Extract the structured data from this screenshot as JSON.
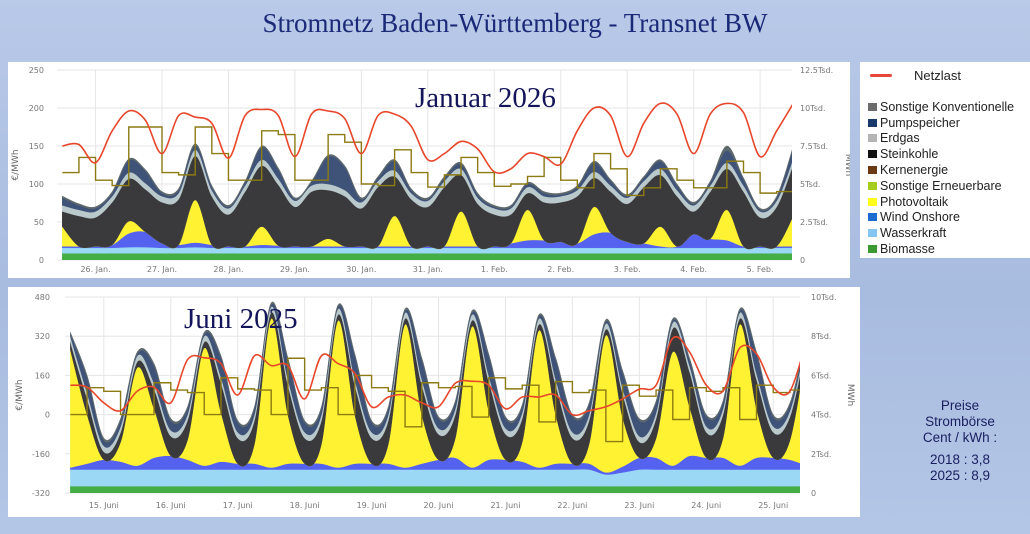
{
  "title": "Stromnetz Baden-Württemberg - Transnet BW",
  "legend": {
    "netzlast": {
      "label": "Netzlast",
      "color": "#e8463a"
    },
    "items": [
      {
        "label": "Sonstige Konventionelle",
        "color": "#6b6b6b"
      },
      {
        "label": "Pumpspeicher",
        "color": "#173a6b"
      },
      {
        "label": "Erdgas",
        "color": "#b4b4b4"
      },
      {
        "label": "Steinkohle",
        "color": "#111111"
      },
      {
        "label": "Kernenergie",
        "color": "#6b3a12"
      },
      {
        "label": "Sonstige Erneuerbare",
        "color": "#a6cc1e"
      },
      {
        "label": "Photovoltaik",
        "color": "#ffff1a"
      },
      {
        "label": "Wind Onshore",
        "color": "#1a6ad0"
      },
      {
        "label": "Wasserkraft",
        "color": "#84c6f2"
      },
      {
        "label": "Biomasse",
        "color": "#3b9a2f"
      }
    ]
  },
  "price_box": {
    "lines": [
      "Preise",
      "Strombörse",
      "Cent / kWh :"
    ],
    "values": [
      "2018 : 3,8",
      "2025 : 8,9"
    ]
  },
  "chart_data": [
    {
      "type": "area",
      "title": "Januar 2026",
      "ylabel_left": "€/MWh",
      "ylabel_right": "MWh",
      "left_ticks": [
        "0",
        "50",
        "100",
        "150",
        "200",
        "250"
      ],
      "left_range": [
        0,
        250
      ],
      "right_ticks": [
        "0",
        "2.5Tsd.",
        "5Tsd.",
        "7.5Tsd.",
        "10Tsd.",
        "12.5Tsd."
      ],
      "right_range_tsd_mwh": [
        0,
        12.5
      ],
      "x_ticks": [
        "26. Jan.",
        "27. Jan.",
        "28. Jan.",
        "29. Jan.",
        "30. Jan.",
        "31. Jan.",
        "1. Feb.",
        "2. Feb.",
        "3. Feb.",
        "4. Feb.",
        "5. Feb."
      ],
      "x_start": "25. Jan. 12:00",
      "step_hours": 6,
      "x_domain_days": [
        -0.08,
        10.98
      ],
      "first_tick_day": 0.5,
      "grid": true,
      "stack": [
        {
          "name": "Biomasse",
          "fill": "#45ad45",
          "values": [
            0.45,
            0.45,
            0.45,
            0.45,
            0.45,
            0.45,
            0.45,
            0.45,
            0.45,
            0.45,
            0.45,
            0.45,
            0.45,
            0.45,
            0.45,
            0.45,
            0.45,
            0.45,
            0.45,
            0.45,
            0.45,
            0.45,
            0.45,
            0.45,
            0.45,
            0.45,
            0.45,
            0.45,
            0.45,
            0.45,
            0.45,
            0.45,
            0.45,
            0.45,
            0.45,
            0.45,
            0.45,
            0.45,
            0.45,
            0.45,
            0.45,
            0.45,
            0.45,
            0.45,
            0.45
          ]
        },
        {
          "name": "Wasserkraft",
          "fill": "#9ad8f6",
          "values": [
            0.35,
            0.35,
            0.35,
            0.35,
            0.4,
            0.4,
            0.35,
            0.35,
            0.4,
            0.35,
            0.35,
            0.35,
            0.35,
            0.35,
            0.35,
            0.35,
            0.35,
            0.35,
            0.35,
            0.35,
            0.35,
            0.35,
            0.35,
            0.35,
            0.35,
            0.35,
            0.35,
            0.35,
            0.35,
            0.35,
            0.35,
            0.35,
            0.35,
            0.35,
            0.35,
            0.35,
            0.35,
            0.35,
            0.35,
            0.35,
            0.35,
            0.35,
            0.35,
            0.35,
            0.35
          ]
        },
        {
          "name": "Wind Onshore",
          "fill": "#5562ef",
          "values": [
            0.1,
            0.1,
            0.1,
            0.2,
            0.9,
            1.0,
            0.3,
            0.2,
            0.3,
            0.2,
            0.1,
            0.1,
            0.2,
            0.15,
            0.1,
            0.1,
            0.1,
            0.1,
            0.1,
            0.1,
            0.1,
            0.1,
            0.1,
            0.1,
            0.1,
            0.1,
            0.1,
            0.3,
            0.5,
            0.5,
            0.4,
            0.3,
            0.9,
            1.0,
            0.4,
            0.3,
            0.1,
            0.1,
            0.9,
            0.6,
            0.5,
            0.1,
            0.1,
            0.1,
            0.1
          ]
        },
        {
          "name": "Photovoltaik",
          "fill": "#fff233",
          "values": [
            1.3,
            0,
            0,
            0,
            0.8,
            0,
            0,
            0,
            2.8,
            0,
            0,
            0,
            1.2,
            0,
            0,
            0,
            0.5,
            0,
            0,
            0,
            2.0,
            0,
            0,
            0,
            2.3,
            0,
            0,
            0,
            2.0,
            0,
            0,
            0,
            1.8,
            0,
            0,
            0,
            1.3,
            0,
            0,
            0,
            2.0,
            0,
            0,
            0,
            2.0
          ]
        },
        {
          "name": "Steinkohle",
          "fill": "#3a3a3c",
          "values": [
            1.0,
            2.0,
            1.9,
            2.8,
            2.8,
            2.8,
            2.7,
            3.0,
            2.9,
            3.2,
            2.1,
            3.6,
            4.0,
            4.0,
            2.6,
            3.6,
            3.2,
            3.3,
            2.5,
            3.9,
            2.6,
            3.1,
            2.6,
            3.9,
            2.4,
            2.8,
            2.1,
            1.9,
            1.1,
            2.5,
            2.6,
            3.1,
            1.9,
            2.7,
            2.5,
            3.7,
            3.4,
            3.3,
            1.5,
            3.1,
            2.7,
            3.6,
            1.9,
            2.6,
            3.4
          ]
        },
        {
          "name": "Erdgas",
          "fill": "#b9c9cc",
          "values": [
            0.4,
            0.4,
            0.4,
            0.4,
            0.4,
            0.4,
            0.4,
            0.4,
            0.4,
            0.4,
            0.4,
            0.4,
            0.4,
            0.4,
            0.4,
            0.4,
            0.4,
            0.4,
            0.4,
            0.4,
            0.4,
            0.4,
            0.4,
            0.4,
            0.4,
            0.4,
            0.4,
            0.4,
            0.4,
            0.4,
            0.4,
            0.4,
            0.4,
            0.4,
            0.4,
            0.4,
            0.4,
            0.4,
            0.4,
            0.4,
            0.4,
            0.4,
            0.4,
            0.4,
            0.4
          ]
        },
        {
          "name": "Pumpspeicher",
          "fill": "#3f5278",
          "values": [
            0.5,
            0.3,
            0.2,
            0.2,
            0.8,
            0.8,
            0.2,
            0.2,
            0.3,
            0.2,
            0.1,
            0.2,
            0.8,
            0.6,
            0.1,
            0.2,
            1.8,
            1.5,
            0.2,
            0.2,
            0.6,
            0.2,
            0.1,
            0.2,
            0.3,
            0.2,
            0.1,
            0.1,
            0.2,
            0.2,
            0.1,
            0.2,
            0.6,
            0.3,
            0.1,
            0.2,
            0.5,
            0.3,
            0.1,
            0.2,
            0.8,
            0.4,
            0.1,
            0.2,
            0.7
          ]
        },
        {
          "name": "Sonstige Konventionelle",
          "fill": "#5d686b",
          "values": [
            0.1,
            0.1,
            0.1,
            0.1,
            0.1,
            0.1,
            0.1,
            0.1,
            0.1,
            0.1,
            0.1,
            0.1,
            0.1,
            0.1,
            0.1,
            0.1,
            0.1,
            0.1,
            0.1,
            0.1,
            0.1,
            0.1,
            0.1,
            0.1,
            0.1,
            0.1,
            0.1,
            0.1,
            0.1,
            0.1,
            0.1,
            0.1,
            0.1,
            0.1,
            0.1,
            0.1,
            0.1,
            0.1,
            0.1,
            0.1,
            0.3,
            0.1,
            0.1,
            0.1,
            0.1
          ]
        }
      ],
      "netzlast_tsd_mwh": [
        7.5,
        7.6,
        6.4,
        8.5,
        9.8,
        9.2,
        7.0,
        9.5,
        9.4,
        9.0,
        6.7,
        9.5,
        9.9,
        9.5,
        6.8,
        9.6,
        9.8,
        9.3,
        7.0,
        9.5,
        9.6,
        8.8,
        6.6,
        7.0,
        7.8,
        7.3,
        5.8,
        6.0,
        7.0,
        6.8,
        6.3,
        8.5,
        10.0,
        9.5,
        6.8,
        9.0,
        10.3,
        9.6,
        7.0,
        9.6,
        10.3,
        9.7,
        6.8,
        8.5,
        10.3
      ],
      "price_eur_mwh": [
        115,
        135,
        105,
        98,
        175,
        175,
        115,
        112,
        175,
        140,
        105,
        105,
        170,
        165,
        105,
        105,
        165,
        155,
        100,
        98,
        145,
        115,
        96,
        112,
        135,
        115,
        97,
        100,
        110,
        135,
        105,
        95,
        140,
        120,
        85,
        95,
        120,
        105,
        95,
        95,
        130,
        115,
        88,
        90,
        125
      ]
    },
    {
      "type": "area",
      "title": "Juni 2025",
      "ylabel_left": "€/MWh",
      "ylabel_right": "MWh",
      "left_ticks": [
        "-320",
        "-160",
        "0",
        "160",
        "320",
        "480"
      ],
      "left_range": [
        -320,
        480
      ],
      "right_ticks": [
        "0",
        "2Tsd.",
        "4Tsd.",
        "6Tsd.",
        "8Tsd.",
        "10Tsd."
      ],
      "right_range_tsd_mwh": [
        0,
        10
      ],
      "x_ticks": [
        "15. Juni",
        "16. Juni",
        "17. Juni",
        "18. Juni",
        "19. Juni",
        "20. Juni",
        "21. Juni",
        "22. Juni",
        "23. Juni",
        "24. Juni",
        "25. Juni"
      ],
      "x_start": "14. Juni 12:00",
      "step_hours": 6,
      "x_domain_days": [
        -0.08,
        10.9
      ],
      "first_tick_day": 0.5,
      "grid": true,
      "stack": [
        {
          "name": "Biomasse",
          "fill": "#45ad45",
          "values": [
            0.35,
            0.35,
            0.35,
            0.35,
            0.35,
            0.35,
            0.35,
            0.35,
            0.35,
            0.35,
            0.35,
            0.35,
            0.35,
            0.35,
            0.35,
            0.35,
            0.35,
            0.35,
            0.35,
            0.35,
            0.35,
            0.35,
            0.35,
            0.35,
            0.35,
            0.35,
            0.35,
            0.35,
            0.35,
            0.35,
            0.35,
            0.35,
            0.35,
            0.35,
            0.35,
            0.35,
            0.35,
            0.35,
            0.35,
            0.35,
            0.35,
            0.35,
            0.35,
            0.35,
            0.35
          ]
        },
        {
          "name": "Wasserkraft",
          "fill": "#9ad8f6",
          "values": [
            0.85,
            0.85,
            0.85,
            0.85,
            0.85,
            0.85,
            0.85,
            0.85,
            0.85,
            0.85,
            0.85,
            0.85,
            0.85,
            0.85,
            0.85,
            0.85,
            0.85,
            0.85,
            0.85,
            0.85,
            0.85,
            0.85,
            0.85,
            0.85,
            0.85,
            0.85,
            0.85,
            0.85,
            0.85,
            0.85,
            0.85,
            0.85,
            0.6,
            0.7,
            0.85,
            0.85,
            0.85,
            0.85,
            0.85,
            0.85,
            0.85,
            0.85,
            0.85,
            0.85,
            0.85
          ]
        },
        {
          "name": "Wind Onshore",
          "fill": "#5562ef",
          "values": [
            0.1,
            0.3,
            0.5,
            0.4,
            0.2,
            0.6,
            0.7,
            0.5,
            0.2,
            0.4,
            0.3,
            0.3,
            0.1,
            0.3,
            0.3,
            0.3,
            0.1,
            0.3,
            0.3,
            0.3,
            0.1,
            0.3,
            0.5,
            0.6,
            0.1,
            0.5,
            0.5,
            0.4,
            0.1,
            0.3,
            0.3,
            0.3,
            0.1,
            0.3,
            0.6,
            0.6,
            0.2,
            0.7,
            0.6,
            0.6,
            0.2,
            0.6,
            0.6,
            0.5,
            0.2
          ]
        },
        {
          "name": "Photovoltaik",
          "fill": "#fff233",
          "values": [
            6.0,
            2.5,
            0,
            1.0,
            5.0,
            2.5,
            0,
            1.0,
            6.0,
            2.5,
            0,
            1.0,
            7.6,
            2.5,
            0,
            1.0,
            7.5,
            2.5,
            0,
            1.0,
            7.3,
            2.5,
            0,
            1.0,
            7.2,
            2.5,
            0,
            1.0,
            7.0,
            2.5,
            0,
            1.0,
            7.0,
            2.5,
            0,
            1.0,
            5.8,
            2.5,
            0,
            1.0,
            7.2,
            2.5,
            0,
            1.0,
            6.0
          ]
        },
        {
          "name": "Steinkohle",
          "fill": "#3a3a3c",
          "values": [
            0.4,
            0.8,
            0.4,
            0.5,
            0.3,
            1.0,
            1.0,
            1.0,
            0.3,
            1.5,
            1.3,
            1.2,
            0.3,
            1.5,
            1.3,
            1.2,
            0.3,
            1.5,
            1.3,
            1.2,
            0.3,
            1.5,
            1.3,
            1.2,
            0.3,
            1.5,
            1.3,
            1.2,
            0.3,
            1.5,
            1.3,
            1.2,
            0.3,
            1.2,
            0.8,
            1.0,
            1.2,
            1.8,
            1.3,
            1.2,
            0.3,
            1.5,
            1.3,
            1.2,
            0.3
          ]
        },
        {
          "name": "Erdgas",
          "fill": "#b9c9cc",
          "values": [
            0.3,
            0.3,
            0.3,
            0.3,
            0.3,
            0.3,
            0.3,
            0.3,
            0.3,
            0.3,
            0.3,
            0.3,
            0.3,
            0.3,
            0.3,
            0.3,
            0.3,
            0.3,
            0.3,
            0.3,
            0.3,
            0.3,
            0.3,
            0.3,
            0.3,
            0.3,
            0.3,
            0.3,
            0.3,
            0.3,
            0.3,
            0.3,
            0.3,
            0.3,
            0.3,
            0.3,
            0.3,
            0.3,
            0.3,
            0.3,
            0.3,
            0.3,
            0.3,
            0.3,
            0.3
          ]
        },
        {
          "name": "Pumpspeicher",
          "fill": "#3f5278",
          "values": [
            0.1,
            0.8,
            0.3,
            0.3,
            0.1,
            0.9,
            0.5,
            0.3,
            0.1,
            1.0,
            0.5,
            0.3,
            0.1,
            1.0,
            0.5,
            0.3,
            0.1,
            1.2,
            0.5,
            0.3,
            0.1,
            1.0,
            0.5,
            0.3,
            0.1,
            1.0,
            0.5,
            0.3,
            0.1,
            1.0,
            0.8,
            0.5,
            0.1,
            0.8,
            0.8,
            0.5,
            0.1,
            0.3,
            0.5,
            0.3,
            0.1,
            1.0,
            0.5,
            0.3,
            0.1
          ]
        },
        {
          "name": "Sonstige Konventionelle",
          "fill": "#5d686b",
          "values": [
            0.1,
            0.1,
            0.1,
            0.1,
            0.1,
            0.1,
            0.1,
            0.1,
            0.1,
            0.1,
            0.1,
            0.1,
            0.1,
            0.1,
            0.1,
            0.1,
            0.1,
            0.1,
            0.1,
            0.1,
            0.1,
            0.1,
            0.1,
            0.1,
            0.1,
            0.1,
            0.1,
            0.1,
            0.1,
            0.1,
            0.1,
            0.1,
            0.1,
            0.1,
            0.1,
            0.1,
            0.1,
            0.1,
            0.1,
            0.1,
            0.1,
            0.1,
            0.1,
            0.1,
            0.1
          ]
        }
      ],
      "netzlast_tsd_mwh": [
        5.5,
        5.4,
        4.6,
        4.2,
        5.2,
        5.4,
        4.6,
        6.8,
        6.9,
        6.6,
        5.0,
        7.0,
        6.5,
        6.5,
        4.8,
        7.0,
        6.6,
        6.1,
        4.4,
        4.9,
        5.0,
        4.6,
        4.4,
        5.6,
        5.7,
        5.5,
        4.3,
        4.9,
        4.9,
        5.0,
        4.0,
        4.2,
        4.4,
        4.8,
        5.3,
        5.5,
        7.9,
        7.2,
        5.5,
        5.2,
        7.4,
        7.1,
        5.4,
        5.2,
        7.8
      ],
      "price_eur_mwh": [
        0,
        110,
        95,
        0,
        0,
        130,
        100,
        90,
        0,
        150,
        105,
        100,
        0,
        230,
        100,
        110,
        0,
        160,
        110,
        95,
        -50,
        130,
        110,
        115,
        -10,
        150,
        105,
        120,
        -30,
        135,
        90,
        100,
        -110,
        120,
        75,
        100,
        -20,
        110,
        95,
        110,
        -20,
        120,
        90,
        100,
        70
      ]
    }
  ]
}
